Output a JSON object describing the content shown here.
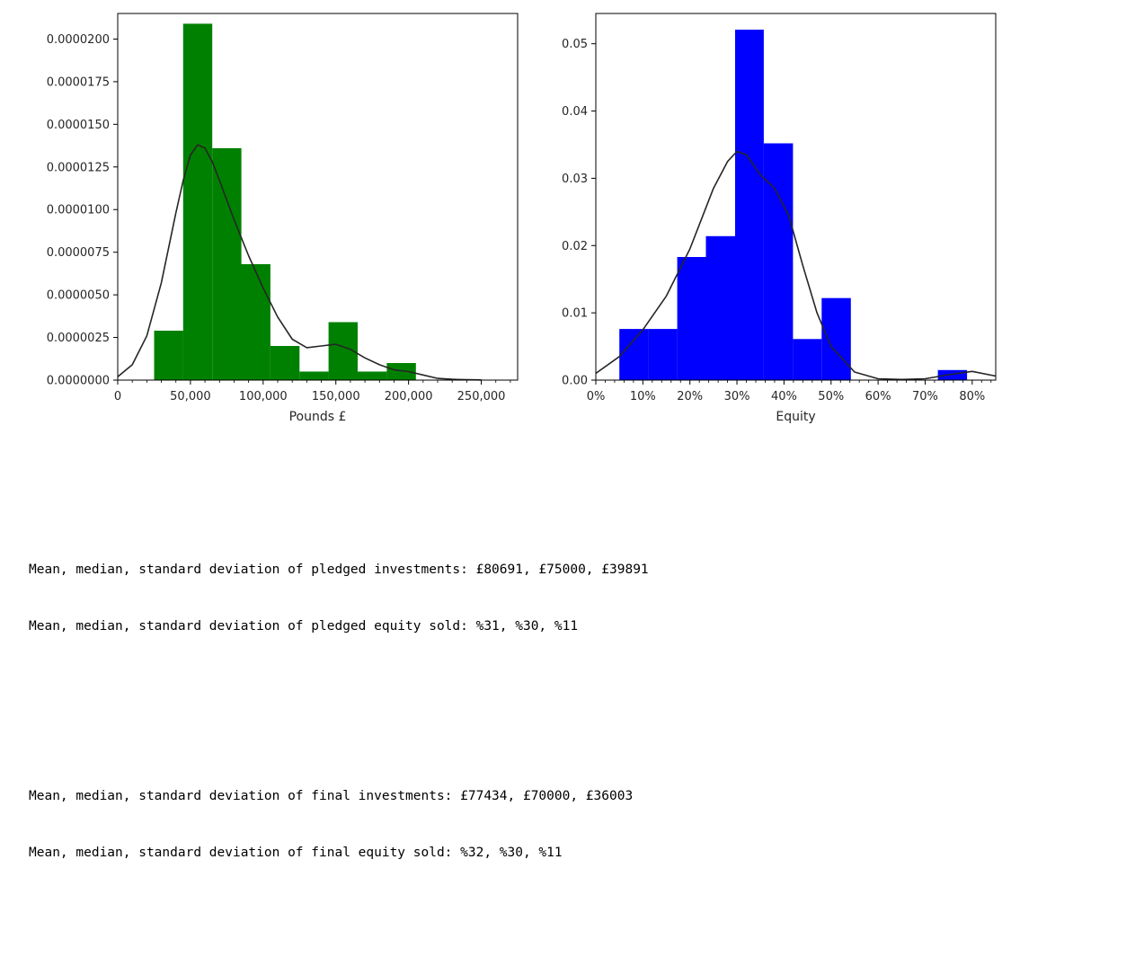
{
  "chart_data": [
    {
      "type": "bar",
      "xlabel": "Pounds £",
      "xlim": [
        0,
        275000
      ],
      "ylim": [
        0,
        2.15e-05
      ],
      "x_ticks": [
        0,
        50000,
        100000,
        150000,
        200000,
        250000
      ],
      "x_tick_labels": [
        "0",
        "50,000",
        "100,000",
        "150,000",
        "200,000",
        "250,000"
      ],
      "y_ticks": [
        0,
        2.5e-06,
        5e-06,
        7.5e-06,
        1e-05,
        1.25e-05,
        1.5e-05,
        1.75e-05,
        2e-05
      ],
      "y_tick_labels": [
        "0.0000000",
        "0.0000025",
        "0.0000050",
        "0.0000075",
        "0.0000100",
        "0.0000125",
        "0.0000150",
        "0.0000175",
        "0.0000200"
      ],
      "grid": false,
      "color": "#008000",
      "bins": [
        {
          "x0": 25000,
          "x1": 45000,
          "value": 2.9e-06
        },
        {
          "x0": 45000,
          "x1": 65000,
          "value": 2.09e-05
        },
        {
          "x0": 65000,
          "x1": 85000,
          "value": 1.36e-05
        },
        {
          "x0": 85000,
          "x1": 105000,
          "value": 6.8e-06
        },
        {
          "x0": 105000,
          "x1": 125000,
          "value": 2e-06
        },
        {
          "x0": 125000,
          "x1": 145000,
          "value": 5e-07
        },
        {
          "x0": 145000,
          "x1": 165000,
          "value": 3.4e-06
        },
        {
          "x0": 165000,
          "x1": 185000,
          "value": 5e-07
        },
        {
          "x0": 185000,
          "x1": 205000,
          "value": 1e-06
        }
      ],
      "kde": {
        "x": [
          0,
          10000,
          20000,
          30000,
          40000,
          45000,
          50000,
          55000,
          60000,
          65000,
          70000,
          80000,
          90000,
          100000,
          110000,
          120000,
          130000,
          140000,
          150000,
          160000,
          170000,
          180000,
          190000,
          200000,
          210000,
          220000,
          230000,
          240000,
          250000
        ],
        "y": [
          2e-07,
          9e-07,
          2.6e-06,
          5.7e-06,
          9.8e-06,
          1.17e-05,
          1.32e-05,
          1.38e-05,
          1.36e-05,
          1.28e-05,
          1.17e-05,
          9.4e-06,
          7.3e-06,
          5.4e-06,
          3.7e-06,
          2.4e-06,
          1.9e-06,
          2e-06,
          2.1e-06,
          1.8e-06,
          1.3e-06,
          9e-07,
          6e-07,
          5e-07,
          3e-07,
          1e-07,
          5e-08,
          2e-08,
          1e-08
        ]
      }
    },
    {
      "type": "bar",
      "xlabel": "Equity",
      "xlim": [
        0,
        0.85
      ],
      "ylim": [
        0,
        0.0545
      ],
      "x_ticks": [
        0,
        0.1,
        0.2,
        0.3,
        0.4,
        0.5,
        0.6,
        0.7,
        0.8
      ],
      "x_tick_labels": [
        "0%",
        "10%",
        "20%",
        "30%",
        "40%",
        "50%",
        "60%",
        "70%",
        "80%"
      ],
      "y_ticks": [
        0,
        0.01,
        0.02,
        0.03,
        0.04,
        0.05
      ],
      "y_tick_labels": [
        "0.00",
        "0.01",
        "0.02",
        "0.03",
        "0.04",
        "0.05"
      ],
      "grid": false,
      "color": "#0000ff",
      "bins": [
        {
          "x0": 0.05,
          "x1": 0.111,
          "value": 0.0076
        },
        {
          "x0": 0.111,
          "x1": 0.173,
          "value": 0.0076
        },
        {
          "x0": 0.173,
          "x1": 0.234,
          "value": 0.0183
        },
        {
          "x0": 0.234,
          "x1": 0.296,
          "value": 0.0214
        },
        {
          "x0": 0.296,
          "x1": 0.357,
          "value": 0.0521
        },
        {
          "x0": 0.357,
          "x1": 0.419,
          "value": 0.0352
        },
        {
          "x0": 0.419,
          "x1": 0.48,
          "value": 0.0061
        },
        {
          "x0": 0.48,
          "x1": 0.542,
          "value": 0.0122
        },
        {
          "x0": 0.727,
          "x1": 0.789,
          "value": 0.0015
        }
      ],
      "kde": {
        "x": [
          0,
          0.05,
          0.1,
          0.15,
          0.2,
          0.25,
          0.28,
          0.3,
          0.32,
          0.35,
          0.38,
          0.41,
          0.44,
          0.47,
          0.5,
          0.55,
          0.6,
          0.65,
          0.7,
          0.75,
          0.8,
          0.85
        ],
        "y": [
          0.001,
          0.0035,
          0.0075,
          0.0125,
          0.0195,
          0.0285,
          0.0325,
          0.034,
          0.0335,
          0.0305,
          0.0285,
          0.0245,
          0.017,
          0.01,
          0.005,
          0.0012,
          0.0002,
          0.0001,
          0.0002,
          0.0008,
          0.0013,
          0.0006
        ]
      }
    }
  ],
  "output": [
    [
      "Mean, median, standard deviation of pledged investments: £80691, £75000, £39891",
      "Mean, median, standard deviation of pledged equity sold: %31, %30, %11"
    ],
    [
      "Mean, median, standard deviation of final investments: £77434, £70000, £36003",
      "Mean, median, standard deviation of final equity sold: %32, %30, %11"
    ]
  ]
}
